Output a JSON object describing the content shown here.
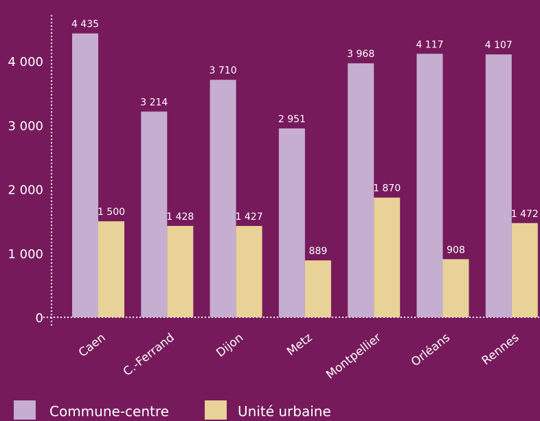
{
  "chart_data": {
    "type": "bar",
    "title": "",
    "xlabel": "",
    "ylabel": "",
    "categories": [
      "Caen",
      "C.-Ferrand",
      "Dijon",
      "Metz",
      "Montpellier",
      "Orléans",
      "Rennes"
    ],
    "series": [
      {
        "name": "Commune-centre",
        "color": "#c5aed0",
        "values": [
          4435,
          3214,
          3710,
          2951,
          3968,
          4117,
          4107
        ],
        "labels": [
          "4 435",
          "3 214",
          "3 710",
          "2 951",
          "3 968",
          "4 117",
          "4 107"
        ]
      },
      {
        "name": "Unité urbaine",
        "color": "#e8d297",
        "values": [
          1500,
          1428,
          1427,
          889,
          1870,
          908,
          1472
        ],
        "labels": [
          "1 500",
          "1 428",
          "1 427",
          "889",
          "1 870",
          "908",
          "1 472"
        ]
      }
    ],
    "ylim": [
      0,
      4600
    ],
    "yticks": [
      0,
      1000,
      2000,
      3000,
      4000
    ],
    "ytick_labels": [
      "0",
      "1 000",
      "2 000",
      "3 000",
      "4 000"
    ],
    "grid": false,
    "legend_position": "bottom",
    "background": "#761a5c",
    "axis_color": "#ffffff"
  }
}
